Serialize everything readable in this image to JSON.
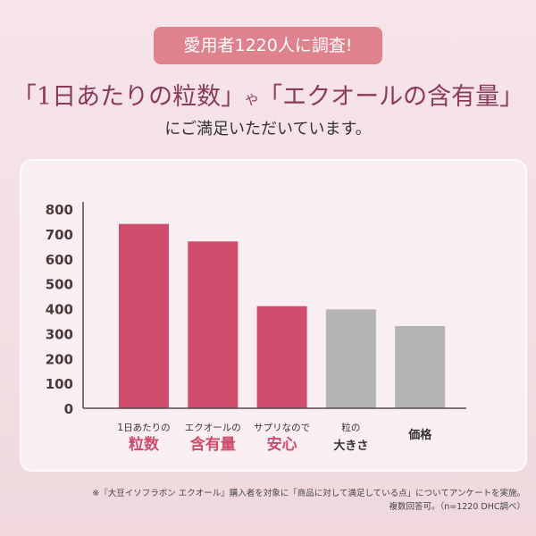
{
  "header": {
    "badge": "愛用者1220人に調査!",
    "headline_part1": "「1日あたりの粒数」",
    "headline_joiner": "や",
    "headline_part2": "「エクオールの含有量」",
    "subheadline": "にご満足いただいています。"
  },
  "chart_data": {
    "type": "bar",
    "title": "",
    "xlabel": "",
    "ylabel": "",
    "ylim": [
      0,
      800
    ],
    "yticks": [
      "0",
      "100",
      "200",
      "300",
      "400",
      "500",
      "600",
      "700",
      "800"
    ],
    "categories": [
      {
        "line1": "1日あたりの",
        "line2": "粒数",
        "highlight": true
      },
      {
        "line1": "エクオールの",
        "line2": "含有量",
        "highlight": true
      },
      {
        "line1": "サプリなので",
        "line2": "安心",
        "highlight": true
      },
      {
        "line1": "粒の",
        "line2": "大きさ",
        "highlight": false
      },
      {
        "line1": "価格",
        "line2": "",
        "highlight": false
      }
    ],
    "values": [
      740,
      670,
      410,
      397,
      330
    ],
    "colors": {
      "highlight": "#cf4d6c",
      "other": "#b5b4b4",
      "highlight_text": "#cf4d6c",
      "axis": "#5a4a48"
    },
    "grid": false
  },
  "footnote": {
    "line1": "※『大豆イソフラボン エクオール』購入者を対象に「商品に対して満足している点」についてアンケートを実施。",
    "line2": "複数回答可。（n=1220 DHC調べ）"
  }
}
